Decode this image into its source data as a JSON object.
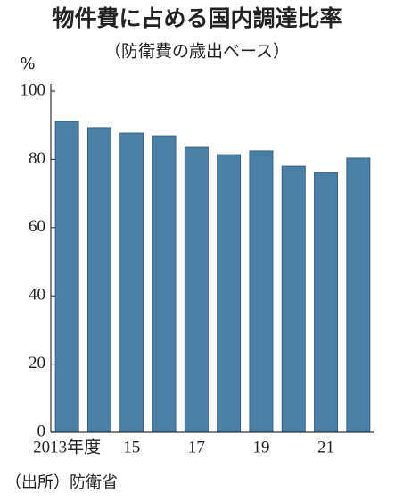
{
  "chart_data": {
    "type": "bar",
    "title": "物件費に占める国内調達比率",
    "subtitle": "（防衛費の歳出ベース）",
    "y_label": "%",
    "source": "（出所）防衛省",
    "categories": [
      "2013年度",
      null,
      "15",
      null,
      "17",
      null,
      "19",
      null,
      "21",
      null
    ],
    "values": [
      91.1,
      89.3,
      87.7,
      86.9,
      83.5,
      81.4,
      82.5,
      78.0,
      76.2,
      80.4
    ],
    "color": "#4a7fa7",
    "ylim": [
      0,
      100
    ],
    "yticks": [
      0,
      20,
      40,
      60,
      80,
      100
    ],
    "grid": false
  }
}
